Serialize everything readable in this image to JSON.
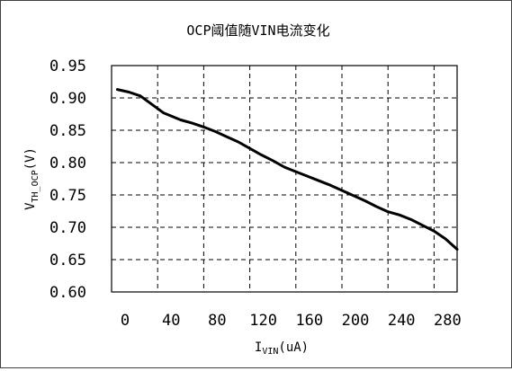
{
  "chart_data": {
    "type": "line",
    "title": "OCP阈值随VIN电流变化",
    "xlabel": {
      "main": "I",
      "sub": "VIN",
      "unit": "(uA)"
    },
    "ylabel": {
      "main": "V",
      "sub": "TH_OCP",
      "unit": "(V)"
    },
    "xlim": [
      0,
      300
    ],
    "ylim": [
      0.6,
      0.95
    ],
    "x_ticks": [
      0,
      40,
      80,
      120,
      160,
      200,
      240,
      280
    ],
    "x_tick_labels": [
      "0",
      "40",
      "80",
      "120",
      "160",
      "200",
      "240",
      "280"
    ],
    "y_ticks": [
      0.6,
      0.65,
      0.7,
      0.75,
      0.8,
      0.85,
      0.9,
      0.95
    ],
    "y_tick_labels": [
      "0.60",
      "0.65",
      "0.70",
      "0.75",
      "0.80",
      "0.85",
      "0.90",
      "0.95"
    ],
    "grid": true,
    "series": [
      {
        "color": "#000000",
        "x": [
          5,
          15,
          25,
          35,
          45,
          60,
          70,
          80,
          90,
          100,
          110,
          120,
          130,
          140,
          150,
          160,
          170,
          180,
          190,
          200,
          210,
          220,
          230,
          240,
          250,
          260,
          270,
          280,
          290,
          300
        ],
        "y": [
          0.913,
          0.909,
          0.903,
          0.89,
          0.877,
          0.866,
          0.861,
          0.855,
          0.848,
          0.84,
          0.832,
          0.822,
          0.812,
          0.803,
          0.793,
          0.786,
          0.779,
          0.772,
          0.765,
          0.757,
          0.749,
          0.741,
          0.732,
          0.724,
          0.719,
          0.712,
          0.703,
          0.694,
          0.682,
          0.666
        ]
      }
    ]
  }
}
